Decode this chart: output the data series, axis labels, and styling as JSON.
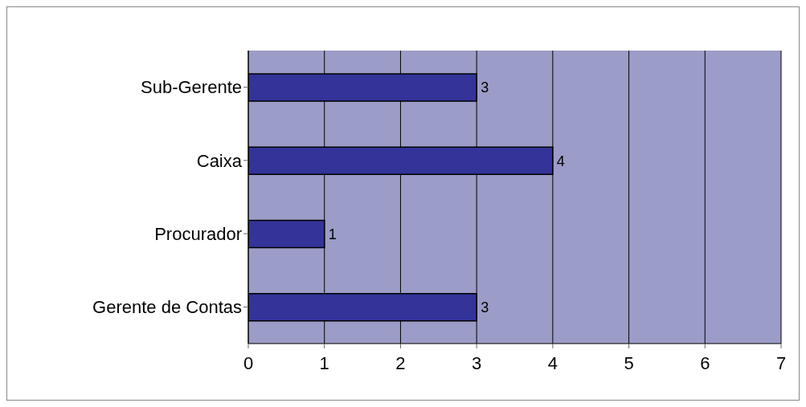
{
  "chart_data": {
    "type": "bar",
    "orientation": "horizontal",
    "categories": [
      "Sub-Gerente",
      "Caixa",
      "Procurador",
      "Gerente de Contas"
    ],
    "values": [
      3,
      4,
      1,
      3
    ],
    "color": "#333399",
    "xlim": [
      0,
      7
    ],
    "xticks": [
      0,
      1,
      2,
      3,
      4,
      5,
      6,
      7
    ],
    "grid": "x",
    "data_labels": true
  }
}
